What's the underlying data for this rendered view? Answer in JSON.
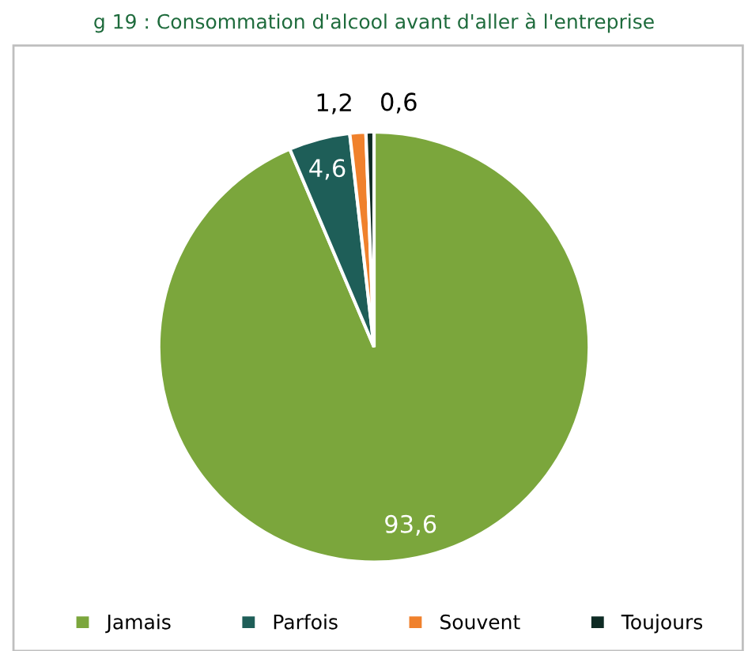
{
  "chart_data": {
    "type": "pie",
    "title": "g 19 : Consommation d'alcool avant d'aller à l'entreprise",
    "categories": [
      "Jamais",
      "Parfois",
      "Souvent",
      "Toujours"
    ],
    "values": [
      93.6,
      4.6,
      1.2,
      0.6
    ],
    "value_labels": [
      "93,6",
      "4,6",
      "1,2",
      "0,6"
    ],
    "colors": [
      "#7ba63c",
      "#1e5e58",
      "#f0812c",
      "#0e2b24"
    ],
    "legend": "bottom"
  }
}
